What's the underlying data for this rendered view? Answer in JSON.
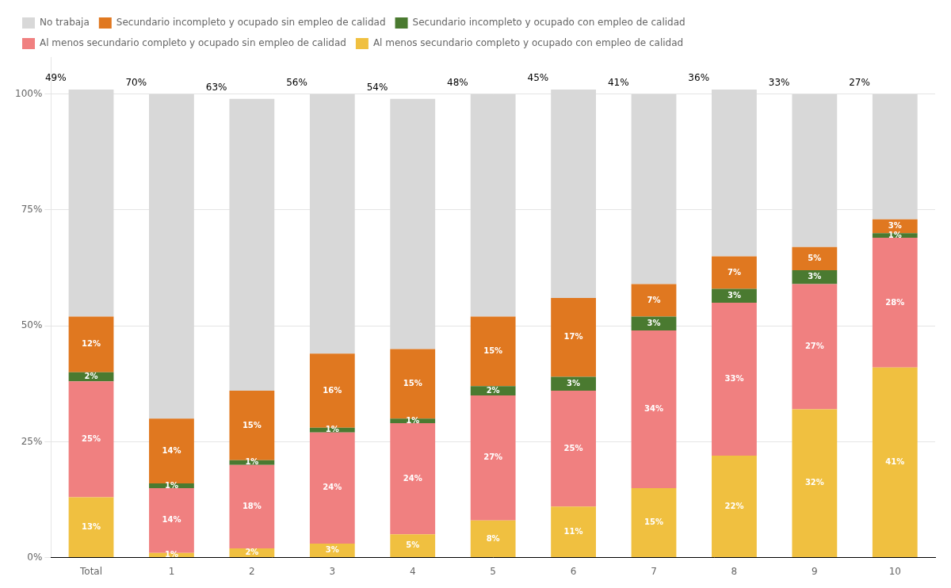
{
  "chart_data": {
    "type": "bar",
    "stacked": true,
    "categories": [
      "Total",
      "1",
      "2",
      "3",
      "4",
      "5",
      "6",
      "7",
      "8",
      "9",
      "10"
    ],
    "series": [
      {
        "name": "Al menos secundario completo y ocupado con empleo de calidad",
        "color": "#F0C040",
        "values": [
          13,
          1,
          2,
          3,
          5,
          8,
          11,
          15,
          22,
          32,
          41
        ],
        "value_labels": [
          "13%",
          "1%",
          "2%",
          "3%",
          "5%",
          "8%",
          "11%",
          "15%",
          "22%",
          "32%",
          "41%"
        ]
      },
      {
        "name": "Al menos secundario completo y ocupado sin empleo de calidad",
        "color": "#F08080",
        "values": [
          25,
          14,
          18,
          24,
          24,
          27,
          25,
          34,
          33,
          27,
          28
        ],
        "value_labels": [
          "25%",
          "14%",
          "18%",
          "24%",
          "24%",
          "27%",
          "25%",
          "34%",
          "33%",
          "27%",
          "28%"
        ]
      },
      {
        "name": "Secundario incompleto y ocupado con empleo de calidad",
        "color": "#4A7A30",
        "values": [
          2,
          1,
          1,
          1,
          1,
          2,
          3,
          3,
          3,
          3,
          1
        ],
        "value_labels": [
          "2%",
          "1%",
          "1%",
          "1%",
          "1%",
          "2%",
          "3%",
          "3%",
          "3%",
          "3%",
          "1%"
        ]
      },
      {
        "name": "Secundario incompleto y ocupado sin empleo de calidad",
        "color": "#E07820",
        "values": [
          12,
          14,
          15,
          16,
          15,
          15,
          17,
          7,
          7,
          5,
          3
        ],
        "value_labels": [
          "12%",
          "14%",
          "15%",
          "16%",
          "15%",
          "15%",
          "17%",
          "7%",
          "7%",
          "5%",
          "3%"
        ]
      },
      {
        "name": "No trabaja",
        "color": "#D8D8D8",
        "values": [
          49,
          70,
          63,
          56,
          54,
          48,
          45,
          41,
          36,
          33,
          27
        ],
        "value_labels": [
          "49%",
          "70%",
          "63%",
          "56%",
          "54%",
          "48%",
          "45%",
          "41%",
          "36%",
          "33%",
          "27%"
        ]
      }
    ],
    "ylim": [
      0,
      108
    ],
    "yticks": [
      {
        "value": 0,
        "label": "0%"
      },
      {
        "value": 25,
        "label": "25%"
      },
      {
        "value": 50,
        "label": "50%"
      },
      {
        "value": 75,
        "label": "75%"
      },
      {
        "value": 100,
        "label": "100%"
      }
    ],
    "grid": true,
    "legend": "upper left",
    "data_labels": true
  }
}
